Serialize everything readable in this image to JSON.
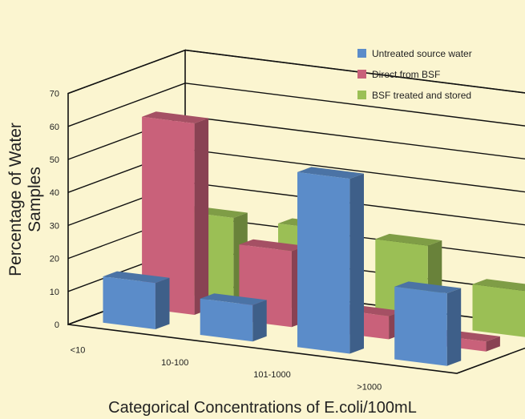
{
  "chart_data": {
    "type": "bar",
    "projection": "3d",
    "title": "",
    "xlabel": "Categorical Concentrations of E.coli/100mL",
    "ylabel": "Percentage of Water Samples",
    "ylim": [
      0,
      70
    ],
    "yticks": [
      0,
      10,
      20,
      30,
      40,
      50,
      60,
      70
    ],
    "grid": true,
    "legend": "top-right",
    "categories": [
      "<10",
      "10-100",
      "101-1000",
      ">1000"
    ],
    "series": [
      {
        "name": "Untreated source water",
        "color": "#5b8cc9",
        "values": [
          14,
          11,
          53,
          22
        ]
      },
      {
        "name": "Direct from BSF",
        "color": "#c9617a",
        "values": [
          58,
          23,
          7,
          3
        ]
      },
      {
        "name": "BSF treated and stored",
        "color": "#9bbf55",
        "values": [
          25,
          25,
          24,
          14
        ]
      }
    ]
  }
}
